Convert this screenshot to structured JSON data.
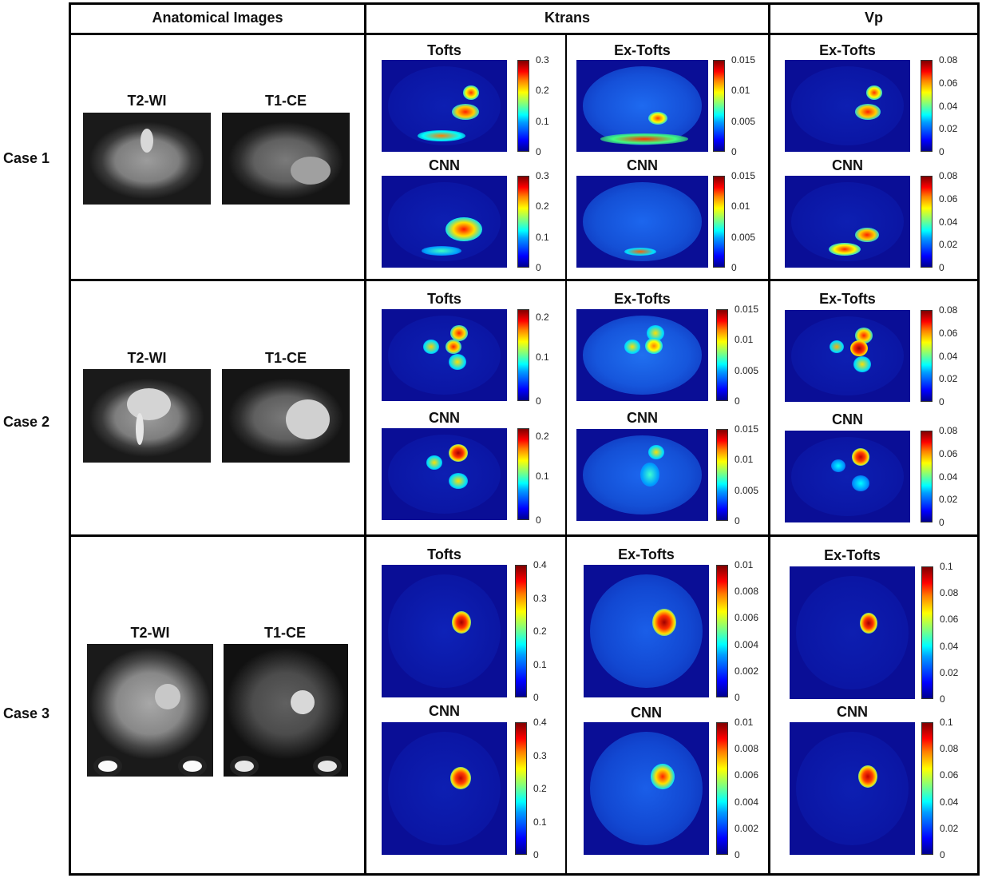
{
  "headers": {
    "anatomical": "Anatomical Images",
    "ktrans": "Ktrans",
    "vp": "Vp"
  },
  "cases": [
    "Case 1",
    "Case 2",
    "Case 3"
  ],
  "anat_labels": [
    "T2-WI",
    "T1-CE"
  ],
  "method_labels": {
    "tofts": "Tofts",
    "ex_tofts": "Ex-Tofts",
    "cnn": "CNN"
  },
  "colorbars": {
    "case1": {
      "tofts": [
        "0.3",
        "0.2",
        "0.1",
        "0"
      ],
      "ex_tofts": [
        "0.015",
        "0.01",
        "0.005",
        "0"
      ],
      "vp": [
        "0.08",
        "0.06",
        "0.04",
        "0.02",
        "0"
      ]
    },
    "case2": {
      "tofts": [
        "0.2",
        "0.1",
        "0"
      ],
      "ex_tofts": [
        "0.015",
        "0.01",
        "0.005",
        "0"
      ],
      "vp": [
        "0.08",
        "0.06",
        "0.04",
        "0.02",
        "0"
      ]
    },
    "case3": {
      "tofts": [
        "0.4",
        "0.3",
        "0.2",
        "0.1",
        "0"
      ],
      "ex_tofts": [
        "0.01",
        "0.008",
        "0.006",
        "0.004",
        "0.002",
        "0"
      ],
      "vp": [
        "0.1",
        "0.08",
        "0.06",
        "0.04",
        "0.02",
        "0"
      ]
    }
  },
  "colormap": "jet"
}
